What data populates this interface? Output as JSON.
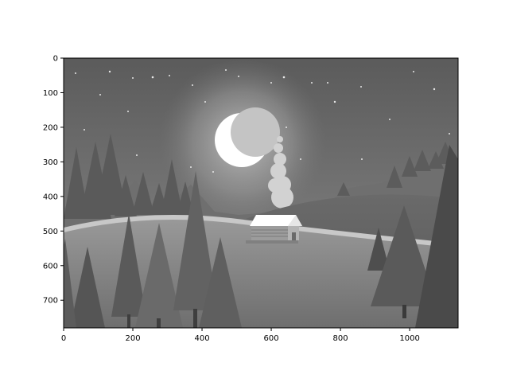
{
  "figure": {
    "type": "image",
    "image_description_kind": "grayscale night landscape illustration",
    "x_ticks": [
      "0",
      "200",
      "400",
      "600",
      "800",
      "1000"
    ],
    "y_ticks": [
      "0",
      "100",
      "200",
      "300",
      "400",
      "500",
      "600",
      "700"
    ],
    "x_range": [
      0,
      1140
    ],
    "y_range": [
      0,
      780
    ],
    "grid": false
  },
  "scene": {
    "elements": [
      "night-sky",
      "stars",
      "moon-glow",
      "crescent-moon",
      "smoke-column",
      "distant-hills",
      "pine-forest",
      "cabin",
      "snowy-ground"
    ]
  }
}
